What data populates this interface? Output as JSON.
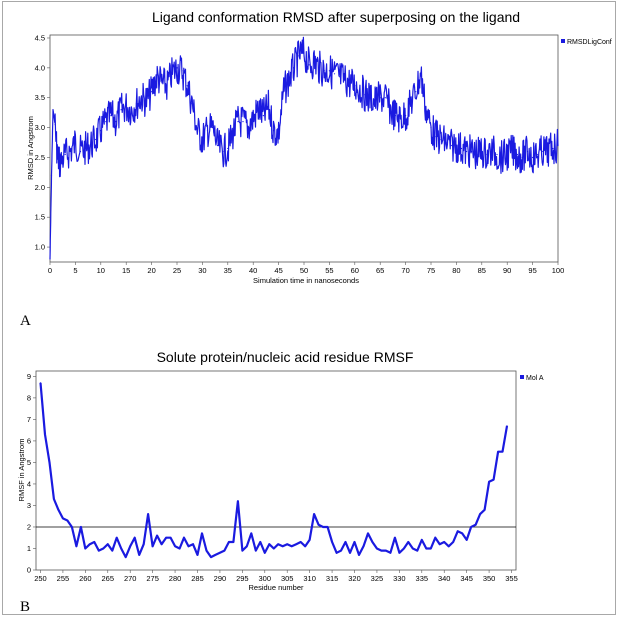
{
  "panels": [
    {
      "label": "A"
    },
    {
      "label": "B"
    }
  ],
  "chart_data": [
    {
      "type": "line",
      "title": "Ligand conformation RMSD after superposing on the ligand",
      "xlabel": "Simulation time in nanoseconds",
      "ylabel": "RMSD in Angstrom",
      "xlim": [
        0,
        100
      ],
      "ylim": [
        0.75,
        4.55
      ],
      "xticks": [
        0,
        5,
        10,
        15,
        20,
        25,
        30,
        35,
        40,
        45,
        50,
        55,
        60,
        65,
        70,
        75,
        80,
        85,
        90,
        95,
        100
      ],
      "yticks": [
        1.0,
        1.5,
        2.0,
        2.5,
        3.0,
        3.5,
        4.0,
        4.5
      ],
      "ytick_labels": [
        "1.0",
        "1.5",
        "2.0",
        "2.5",
        "3.0",
        "3.5",
        "4.0",
        "4.5"
      ],
      "color": "#1a1ae0",
      "legend": "right",
      "series": [
        {
          "name": "RMSDLigConf",
          "x": [
            0,
            0.3,
            0.6,
            1,
            1.5,
            2,
            3,
            4,
            5,
            6,
            7,
            8,
            9,
            10,
            11,
            12,
            13,
            14,
            15,
            16,
            17,
            18,
            19,
            20,
            21,
            22,
            23,
            24,
            25,
            26,
            27,
            28,
            29,
            30,
            31,
            32,
            33,
            34,
            35,
            36,
            37,
            38,
            39,
            40,
            41,
            42,
            43,
            44,
            45,
            46,
            47,
            48,
            49,
            50,
            51,
            52,
            53,
            54,
            55,
            56,
            57,
            58,
            59,
            60,
            61,
            62,
            63,
            64,
            65,
            66,
            67,
            68,
            69,
            70,
            71,
            72,
            73,
            74,
            75,
            76,
            77,
            78,
            79,
            80,
            81,
            82,
            83,
            84,
            85,
            86,
            87,
            88,
            89,
            90,
            91,
            92,
            93,
            94,
            95,
            96,
            97,
            98,
            99,
            100
          ],
          "values": [
            0.8,
            2.2,
            3.3,
            3.05,
            2.5,
            2.4,
            2.55,
            2.6,
            2.75,
            2.6,
            2.65,
            2.7,
            2.8,
            2.95,
            3.1,
            3.2,
            3.1,
            3.3,
            3.35,
            3.3,
            3.4,
            3.5,
            3.45,
            3.6,
            3.85,
            3.75,
            3.7,
            3.9,
            4.0,
            3.95,
            3.7,
            3.4,
            2.95,
            2.8,
            2.95,
            3.0,
            2.7,
            2.6,
            2.65,
            2.9,
            3.1,
            3.1,
            3.0,
            3.15,
            3.3,
            3.2,
            3.35,
            2.95,
            2.9,
            3.6,
            3.8,
            4.0,
            4.2,
            4.25,
            4.05,
            4.1,
            4.0,
            3.95,
            3.95,
            3.9,
            3.85,
            3.8,
            3.75,
            3.7,
            3.65,
            3.55,
            3.5,
            3.45,
            3.5,
            3.5,
            3.3,
            3.2,
            3.15,
            3.2,
            3.4,
            3.6,
            3.9,
            3.3,
            3.0,
            2.85,
            2.8,
            2.75,
            2.7,
            2.7,
            2.65,
            2.6,
            2.6,
            2.55,
            2.6,
            2.55,
            2.6,
            2.55,
            2.5,
            2.55,
            2.6,
            2.55,
            2.5,
            2.6,
            2.5,
            2.55,
            2.6,
            2.6,
            2.65,
            2.7
          ]
        }
      ]
    },
    {
      "type": "line",
      "title": "Solute protein/nucleic acid residue RMSF",
      "xlabel": "Residue number",
      "ylabel": "RMSF in Angstrom",
      "xlim": [
        249,
        356
      ],
      "ylim": [
        0,
        9.25
      ],
      "xticks": [
        250,
        255,
        260,
        265,
        270,
        275,
        280,
        285,
        290,
        295,
        300,
        305,
        310,
        315,
        320,
        325,
        330,
        335,
        340,
        345,
        350,
        355
      ],
      "yticks": [
        0,
        1,
        2,
        3,
        4,
        5,
        6,
        7,
        8,
        9
      ],
      "hline": 2.0,
      "color": "#1a1ae0",
      "legend": "right",
      "series": [
        {
          "name": "Mol A",
          "x": [
            250,
            251,
            252,
            253,
            254,
            255,
            256,
            257,
            258,
            259,
            260,
            261,
            262,
            263,
            264,
            265,
            266,
            267,
            268,
            269,
            270,
            271,
            272,
            273,
            274,
            275,
            276,
            277,
            278,
            279,
            280,
            281,
            282,
            283,
            284,
            285,
            286,
            287,
            288,
            289,
            290,
            291,
            292,
            293,
            294,
            295,
            296,
            297,
            298,
            299,
            300,
            301,
            302,
            303,
            304,
            305,
            306,
            307,
            308,
            309,
            310,
            311,
            312,
            313,
            314,
            315,
            316,
            317,
            318,
            319,
            320,
            321,
            322,
            323,
            324,
            325,
            326,
            327,
            328,
            329,
            330,
            331,
            332,
            333,
            334,
            335,
            336,
            337,
            338,
            339,
            340,
            341,
            342,
            343,
            344,
            345,
            346,
            347,
            348,
            349,
            350,
            351,
            352,
            353,
            354
          ],
          "values": [
            8.7,
            6.3,
            5.0,
            3.3,
            2.8,
            2.4,
            2.3,
            2.0,
            1.1,
            2.0,
            1.0,
            1.2,
            1.3,
            0.9,
            1.0,
            1.2,
            0.9,
            1.5,
            1.0,
            0.6,
            1.1,
            1.5,
            0.7,
            1.2,
            2.6,
            1.1,
            1.6,
            1.2,
            1.5,
            1.5,
            1.1,
            1.0,
            1.5,
            1.1,
            1.2,
            0.7,
            1.7,
            0.9,
            0.6,
            0.7,
            0.8,
            0.9,
            1.3,
            1.3,
            3.2,
            0.9,
            1.1,
            1.7,
            0.9,
            1.3,
            0.8,
            1.2,
            1.0,
            1.2,
            1.1,
            1.2,
            1.1,
            1.2,
            1.3,
            1.1,
            1.4,
            2.6,
            2.1,
            2.0,
            2.0,
            1.3,
            0.8,
            0.9,
            1.3,
            0.8,
            1.3,
            0.7,
            1.1,
            1.7,
            1.3,
            1.0,
            0.9,
            0.9,
            0.8,
            1.5,
            0.8,
            1.0,
            1.3,
            1.0,
            0.9,
            1.4,
            1.0,
            1.0,
            1.5,
            1.2,
            1.3,
            1.1,
            1.3,
            1.8,
            1.7,
            1.4,
            2.0,
            2.1,
            2.6,
            2.8,
            4.1,
            4.2,
            5.5,
            5.5,
            6.7
          ]
        }
      ]
    }
  ]
}
